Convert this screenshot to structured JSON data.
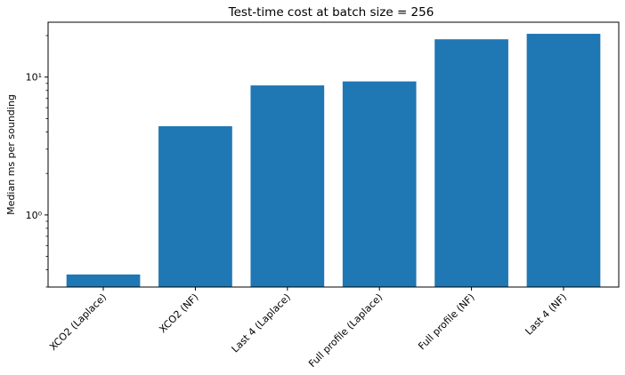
{
  "chart_data": {
    "type": "bar",
    "title": "Test-time cost at batch size = 256",
    "xlabel": "",
    "ylabel": "Median ms per sounding",
    "yscale": "log",
    "ylim": [
      0.3,
      25
    ],
    "grid": false,
    "legend": "none",
    "bar_color": "#1f77b4",
    "categories": [
      "XCO2 (Laplace)",
      "XCO2 (NF)",
      "Last 4 (Laplace)",
      "Full profile (Laplace)",
      "Full profile (NF)",
      "Last 4 (NF)"
    ],
    "values": [
      0.37,
      4.4,
      8.7,
      9.3,
      18.8,
      20.6
    ],
    "y_major_ticks": [
      {
        "value": 1,
        "label": "10⁰"
      },
      {
        "value": 10,
        "label": "10¹"
      }
    ],
    "y_minor_ticks": [
      0.3,
      0.4,
      0.5,
      0.6,
      0.7,
      0.8,
      0.9,
      2,
      3,
      4,
      5,
      6,
      7,
      8,
      9,
      20
    ]
  }
}
